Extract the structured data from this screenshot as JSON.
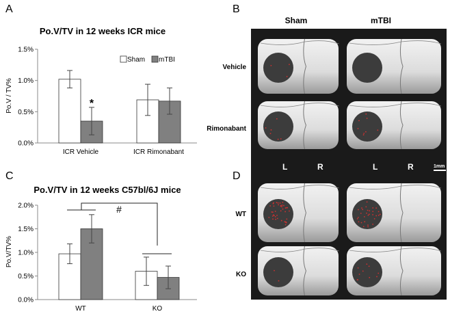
{
  "panel_letters": {
    "a": "A",
    "b": "B",
    "c": "C",
    "d": "D"
  },
  "colors": {
    "sham": "#ffffff",
    "mtbi": "#808080",
    "scan_bg": "#1a1a1a",
    "lesion": "#3c3c3c",
    "dots": "#d03030"
  },
  "chart_data": [
    {
      "type": "bar",
      "title": "Po.V/TV in 12 weeks ICR mice",
      "ylabel": "Po.V / TV%",
      "xlabel": "",
      "categories": [
        "ICR Vehicle",
        "ICR Rimonabant"
      ],
      "yticks": [
        "0.0%",
        "0.5%",
        "1.0%",
        "1.5%"
      ],
      "ylim": [
        0,
        1.5
      ],
      "legend": [
        "Sham",
        "mTBI"
      ],
      "legend_position": "top-right",
      "grid": false,
      "series": [
        {
          "name": "Sham",
          "values": [
            1.02,
            0.69
          ],
          "errors": [
            0.14,
            0.25
          ]
        },
        {
          "name": "mTBI",
          "values": [
            0.35,
            0.67
          ],
          "errors": [
            0.22,
            0.21
          ]
        }
      ],
      "annotations": [
        {
          "text": "*",
          "category": "ICR Vehicle",
          "series": "mTBI"
        }
      ]
    },
    {
      "type": "bar",
      "title": "Po.V/TV in 12 weeks C57bl/6J mice",
      "ylabel": "Po.V/TV%",
      "xlabel": "",
      "categories": [
        "WT",
        "KO"
      ],
      "yticks": [
        "0.0%",
        "0.5%",
        "1.0%",
        "1.5%",
        "2.0%"
      ],
      "ylim": [
        0,
        2.0
      ],
      "grid": false,
      "series": [
        {
          "values": [
            0.97,
            0.6
          ],
          "errors": [
            0.21,
            0.3
          ]
        },
        {
          "values": [
            1.5,
            0.47
          ],
          "errors": [
            0.3,
            0.24
          ]
        }
      ],
      "annotations": [
        {
          "text": "#",
          "between": [
            "WT",
            "KO"
          ]
        }
      ]
    }
  ],
  "panel_b": {
    "col_headers": [
      "Sham",
      "mTBI"
    ],
    "row_labels": [
      "Vehicle",
      "Rimonabant"
    ]
  },
  "panel_d": {
    "side_labels": [
      "L",
      "R",
      "L",
      "R"
    ],
    "scale_label": "1mm",
    "row_labels": [
      "WT",
      "KO"
    ]
  }
}
